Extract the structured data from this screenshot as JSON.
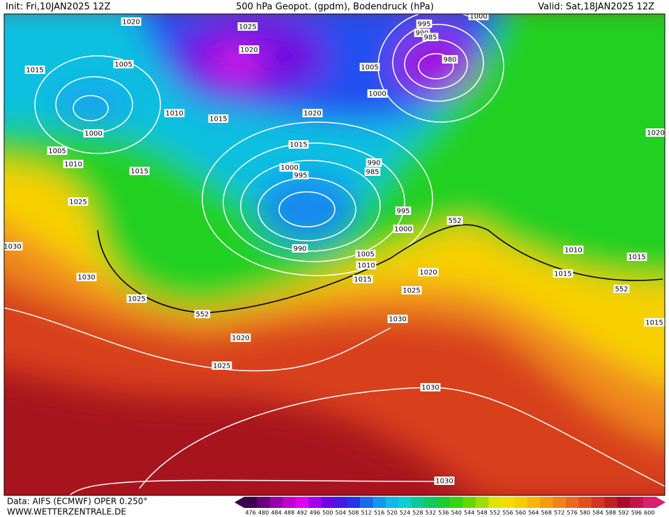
{
  "header": {
    "init": "Init: Fri,10JAN2025 12Z",
    "title": "500 hPa Geopot. (gpdm), Bodendruck (hPa)",
    "valid": "Valid: Sat,18JAN2025 12Z"
  },
  "footer": {
    "source": "Data: AIFS (ECMWF) OPER 0.250°",
    "website": "WWW.WETTERZENTRALE.DE"
  },
  "colorbar": {
    "labels": [
      476,
      480,
      484,
      488,
      492,
      496,
      500,
      504,
      508,
      512,
      516,
      520,
      524,
      528,
      532,
      536,
      540,
      544,
      548,
      552,
      556,
      560,
      564,
      568,
      572,
      576,
      580,
      584,
      588,
      592,
      596,
      600
    ]
  },
  "map": {
    "labels": [
      "1020",
      "1025",
      "1020",
      "1015",
      "1005",
      "1010",
      "1015",
      "1000",
      "1005",
      "1010",
      "1015",
      "1025",
      "1030",
      "1030",
      "1025",
      "552",
      "1020",
      "1025",
      "1020",
      "1015",
      "1000",
      "995",
      "990",
      "985",
      "995",
      "1000",
      "990",
      "1005",
      "1010",
      "1015",
      "1020",
      "1025",
      "1030",
      "1030",
      "1030",
      "552",
      "1005",
      "1000",
      "995",
      "990",
      "985",
      "980",
      "1000",
      "1020",
      "1010",
      "1015",
      "1015",
      "552",
      "1015"
    ]
  }
}
